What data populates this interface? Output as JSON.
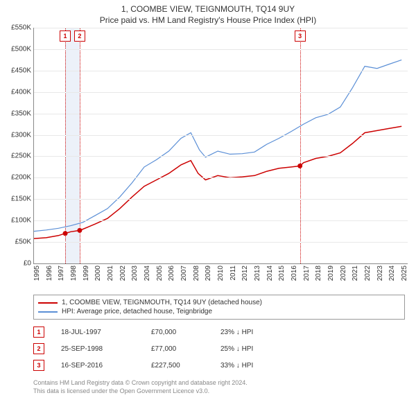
{
  "title_line1": "1, COOMBE VIEW, TEIGNMOUTH, TQ14 9UY",
  "title_line2": "Price paid vs. HM Land Registry's House Price Index (HPI)",
  "chart": {
    "type": "line",
    "background_color": "#ffffff",
    "grid_color": "#e8e8e8",
    "axis_color": "#888888",
    "x_years": [
      1995,
      1996,
      1997,
      1998,
      1999,
      2000,
      2001,
      2002,
      2003,
      2004,
      2005,
      2006,
      2007,
      2008,
      2009,
      2010,
      2011,
      2012,
      2013,
      2014,
      2015,
      2016,
      2017,
      2018,
      2019,
      2020,
      2021,
      2022,
      2023,
      2024,
      2025
    ],
    "x_min": 1995,
    "x_max": 2025.5,
    "ylim": [
      0,
      550000
    ],
    "ytick_step": 50000,
    "ylabels": [
      "£0",
      "£50K",
      "£100K",
      "£150K",
      "£200K",
      "£250K",
      "£300K",
      "£350K",
      "£400K",
      "£450K",
      "£500K",
      "£550K"
    ],
    "label_fontsize": 10,
    "series": [
      {
        "name": "property",
        "label": "1, COOMBE VIEW, TEIGNMOUTH, TQ14 9UY (detached house)",
        "color": "#cc0000",
        "line_width": 1.5,
        "points": [
          [
            1995,
            58000
          ],
          [
            1996,
            60000
          ],
          [
            1997,
            65000
          ],
          [
            1997.55,
            70000
          ],
          [
            1998,
            74000
          ],
          [
            1998.73,
            77000
          ],
          [
            1999,
            80000
          ],
          [
            2000,
            92000
          ],
          [
            2001,
            105000
          ],
          [
            2002,
            128000
          ],
          [
            2003,
            155000
          ],
          [
            2004,
            180000
          ],
          [
            2005,
            195000
          ],
          [
            2006,
            210000
          ],
          [
            2007,
            230000
          ],
          [
            2007.8,
            240000
          ],
          [
            2008.4,
            210000
          ],
          [
            2009,
            195000
          ],
          [
            2010,
            205000
          ],
          [
            2011,
            200000
          ],
          [
            2012,
            202000
          ],
          [
            2013,
            205000
          ],
          [
            2014,
            215000
          ],
          [
            2015,
            222000
          ],
          [
            2016,
            225000
          ],
          [
            2016.71,
            227500
          ],
          [
            2017,
            235000
          ],
          [
            2018,
            245000
          ],
          [
            2019,
            250000
          ],
          [
            2020,
            258000
          ],
          [
            2021,
            280000
          ],
          [
            2022,
            305000
          ],
          [
            2023,
            310000
          ],
          [
            2024,
            315000
          ],
          [
            2025,
            320000
          ]
        ]
      },
      {
        "name": "hpi",
        "label": "HPI: Average price, detached house, Teignbridge",
        "color": "#5b8fd6",
        "line_width": 1.2,
        "points": [
          [
            1995,
            75000
          ],
          [
            1996,
            78000
          ],
          [
            1997,
            82000
          ],
          [
            1998,
            88000
          ],
          [
            1999,
            96000
          ],
          [
            2000,
            112000
          ],
          [
            2001,
            128000
          ],
          [
            2002,
            155000
          ],
          [
            2003,
            188000
          ],
          [
            2004,
            225000
          ],
          [
            2005,
            242000
          ],
          [
            2006,
            262000
          ],
          [
            2007,
            292000
          ],
          [
            2007.8,
            305000
          ],
          [
            2008.5,
            265000
          ],
          [
            2009,
            248000
          ],
          [
            2010,
            262000
          ],
          [
            2011,
            255000
          ],
          [
            2012,
            256000
          ],
          [
            2013,
            260000
          ],
          [
            2014,
            278000
          ],
          [
            2015,
            292000
          ],
          [
            2016,
            308000
          ],
          [
            2017,
            325000
          ],
          [
            2018,
            340000
          ],
          [
            2019,
            348000
          ],
          [
            2020,
            365000
          ],
          [
            2021,
            410000
          ],
          [
            2022,
            460000
          ],
          [
            2023,
            455000
          ],
          [
            2024,
            465000
          ],
          [
            2025,
            475000
          ]
        ]
      }
    ],
    "sale_markers": [
      {
        "n": "1",
        "year": 1997.55,
        "price": 70000
      },
      {
        "n": "2",
        "year": 1998.73,
        "price": 77000
      },
      {
        "n": "3",
        "year": 2016.71,
        "price": 227500
      }
    ],
    "marker_dot_color": "#cc0000",
    "marker_dot_radius": 3.5,
    "marker_box_border": "#cc0000",
    "marker_band_color": "rgba(180,200,230,0.25)"
  },
  "legend": {
    "items": [
      {
        "color": "#cc0000",
        "label": "1, COOMBE VIEW, TEIGNMOUTH, TQ14 9UY (detached house)"
      },
      {
        "color": "#5b8fd6",
        "label": "HPI: Average price, detached house, Teignbridge"
      }
    ]
  },
  "sales": [
    {
      "n": "1",
      "date": "18-JUL-1997",
      "price": "£70,000",
      "delta": "23% ↓ HPI"
    },
    {
      "n": "2",
      "date": "25-SEP-1998",
      "price": "£77,000",
      "delta": "25% ↓ HPI"
    },
    {
      "n": "3",
      "date": "16-SEP-2016",
      "price": "£227,500",
      "delta": "33% ↓ HPI"
    }
  ],
  "footer_line1": "Contains HM Land Registry data © Crown copyright and database right 2024.",
  "footer_line2": "This data is licensed under the Open Government Licence v3.0."
}
